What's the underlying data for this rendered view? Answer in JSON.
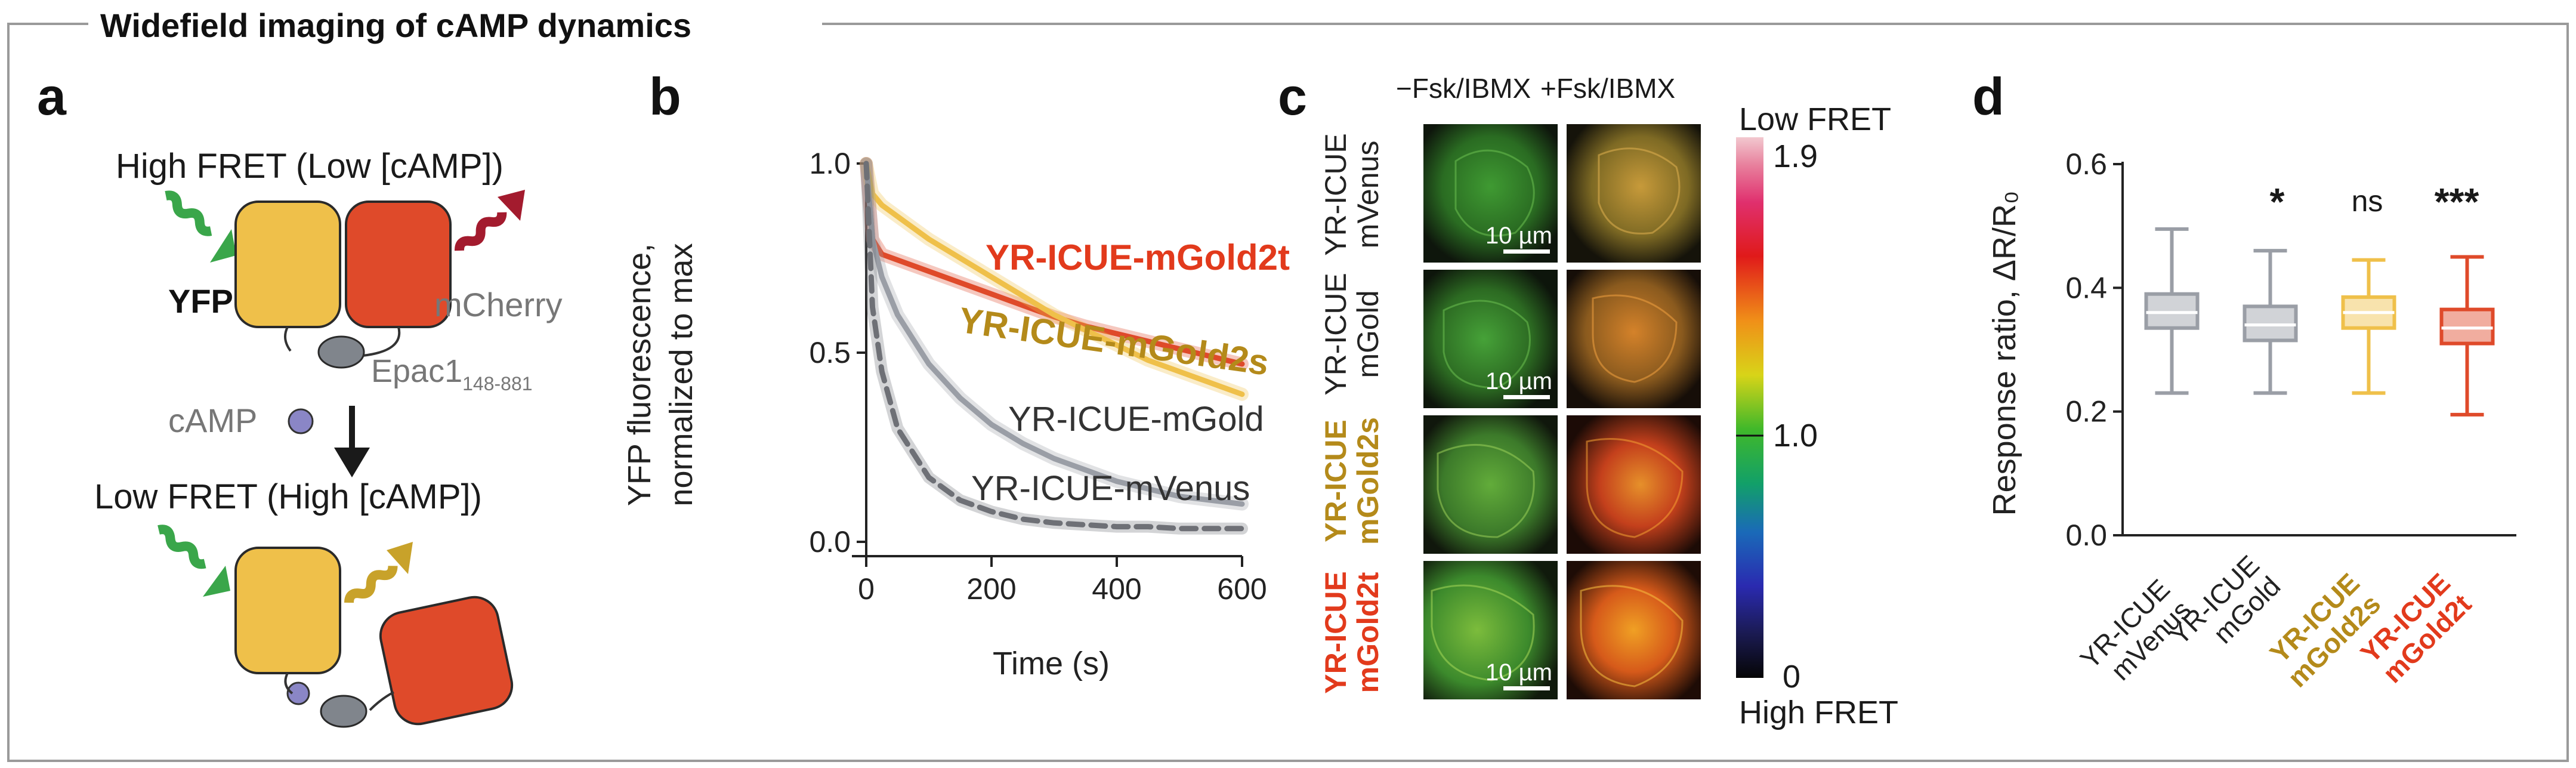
{
  "figure_title": "Widefield imaging of cAMP dynamics",
  "colors": {
    "yellow": "#efc04a",
    "red": "#df4a2a",
    "green": "#3aa64a",
    "darkred": "#a31b2e",
    "gray": "#9a9ea6",
    "mgold_label": "#b48a1a",
    "mgold2t_label": "#e23a1c",
    "frame": "#9a9a9a"
  },
  "panel_a": {
    "label": "a",
    "top_state": "High FRET (Low [cAMP])",
    "bottom_state": "Low FRET (High [cAMP])",
    "yfp_label": "YFP",
    "mcherry_label": "mCherry",
    "epac_label": "Epac1",
    "epac_subscript": "148-881",
    "camp_label": "cAMP"
  },
  "panel_b": {
    "label": "b",
    "line_labels": [
      "YR-ICUE-mGold2t",
      "YR-ICUE-mGold2s",
      "YR-ICUE-mGold",
      "YR-ICUE-mVenus"
    ]
  },
  "panel_c": {
    "label": "c",
    "col_labels": [
      "−Fsk/IBMX",
      "+Fsk/IBMX"
    ],
    "rows": [
      {
        "line1": "YR-ICUE",
        "line2": "mVenus"
      },
      {
        "line1": "YR-ICUE",
        "line2": "mGold"
      },
      {
        "line1": "YR-ICUE",
        "line2": "mGold2s"
      },
      {
        "line1": "YR-ICUE",
        "line2": "mGold2t"
      }
    ],
    "scalebar_label": "10 µm",
    "colorbar": {
      "top_label": "Low FRET",
      "bottom_label": "High FRET",
      "max": "1.9",
      "mid": "1.0",
      "min": "0"
    }
  },
  "panel_d": {
    "label": "d",
    "significance": [
      "*",
      "ns",
      "***"
    ],
    "xlabels": [
      {
        "line1": "YR-ICUE",
        "line2": "mVenus"
      },
      {
        "line1": "YR-ICUE",
        "line2": "mGold"
      },
      {
        "line1": "YR-ICUE",
        "line2": "mGold2s"
      },
      {
        "line1": "YR-ICUE",
        "line2": "mGold2t"
      }
    ]
  },
  "chart_data": [
    {
      "type": "line",
      "title": "",
      "xlabel": "Time (s)",
      "ylabel_line1": "YFP fluorescence,",
      "ylabel_line2": "normalized to max",
      "xlim": [
        0,
        600
      ],
      "ylim": [
        0,
        1.0
      ],
      "xticks": [
        "0",
        "200",
        "400",
        "600"
      ],
      "yticks": [
        "0.0",
        "0.5",
        "1.0"
      ],
      "x": [
        0,
        10,
        25,
        50,
        100,
        150,
        200,
        250,
        300,
        350,
        400,
        450,
        500,
        550,
        600
      ],
      "series": [
        {
          "name": "YR-ICUE-mGold2t",
          "color": "#df4a2a",
          "style": "solid",
          "values": [
            1.0,
            0.8,
            0.76,
            0.745,
            0.715,
            0.685,
            0.655,
            0.625,
            0.595,
            0.57,
            0.55,
            0.53,
            0.51,
            0.49,
            0.47
          ]
        },
        {
          "name": "YR-ICUE-mGold2s",
          "color": "#efc04a",
          "style": "solid",
          "values": [
            1.0,
            0.92,
            0.89,
            0.86,
            0.8,
            0.75,
            0.7,
            0.65,
            0.6,
            0.56,
            0.52,
            0.48,
            0.45,
            0.42,
            0.39
          ]
        },
        {
          "name": "YR-ICUE-mGold",
          "color": "#9a9ea6",
          "style": "solid",
          "values": [
            1.0,
            0.8,
            0.7,
            0.6,
            0.47,
            0.38,
            0.31,
            0.26,
            0.22,
            0.19,
            0.16,
            0.14,
            0.12,
            0.11,
            0.1
          ]
        },
        {
          "name": "YR-ICUE-mVenus",
          "color": "#6e7076",
          "style": "dashed",
          "values": [
            1.0,
            0.62,
            0.45,
            0.3,
            0.17,
            0.11,
            0.08,
            0.06,
            0.05,
            0.045,
            0.04,
            0.04,
            0.035,
            0.035,
            0.035
          ]
        }
      ]
    },
    {
      "type": "box",
      "title": "",
      "ylabel": "Response ratio, ΔR/R₀",
      "ylim": [
        0,
        0.6
      ],
      "yticks": [
        "0.0",
        "0.2",
        "0.4",
        "0.6"
      ],
      "categories": [
        "YR-ICUE mVenus",
        "YR-ICUE mGold",
        "YR-ICUE mGold2s",
        "YR-ICUE mGold2t"
      ],
      "boxes": [
        {
          "min": 0.23,
          "q1": 0.335,
          "median": 0.36,
          "q3": 0.39,
          "max": 0.495,
          "color": "#9a9ea6"
        },
        {
          "min": 0.23,
          "q1": 0.315,
          "median": 0.34,
          "q3": 0.37,
          "max": 0.46,
          "color": "#9a9ea6"
        },
        {
          "min": 0.23,
          "q1": 0.335,
          "median": 0.36,
          "q3": 0.385,
          "max": 0.445,
          "color": "#efc04a"
        },
        {
          "min": 0.195,
          "q1": 0.31,
          "median": 0.335,
          "q3": 0.365,
          "max": 0.45,
          "color": "#df4a2a"
        }
      ]
    }
  ]
}
